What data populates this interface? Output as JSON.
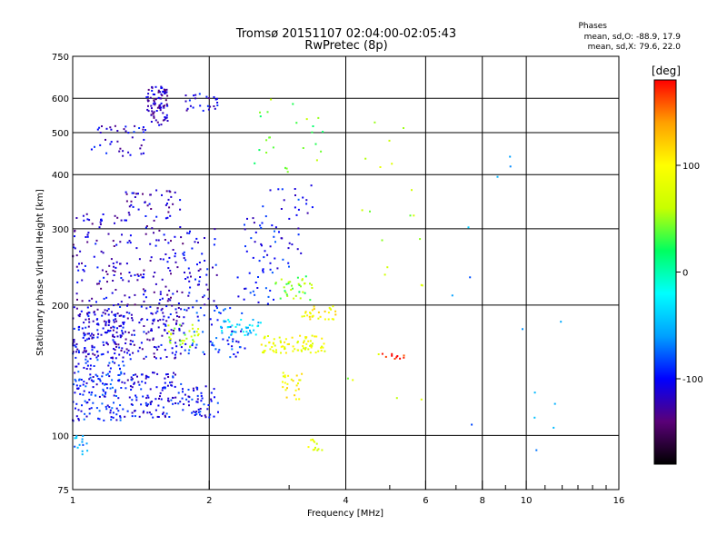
{
  "chart_data": {
    "type": "scatter",
    "title": "Tromsø 20151107 02:04:00-02:05:43",
    "subtitle": "RwPretec (8p)",
    "xlabel": "Frequency [MHz]",
    "ylabel": "Stationary phase Virtual Height [km]",
    "x_scale": "log",
    "y_scale": "log",
    "xlim": [
      1,
      16
    ],
    "ylim": [
      75,
      750
    ],
    "x_ticks": [
      1,
      2,
      4,
      6,
      8,
      10,
      16
    ],
    "y_ticks": [
      75,
      100,
      200,
      300,
      400,
      500,
      600,
      750
    ],
    "phases_panel": {
      "heading": "Phases",
      "line_o": "mean, sd,O: -88.9, 17.9",
      "line_x": "mean, sd,X:  79.6, 22.0"
    },
    "colorbar": {
      "label": "[deg]",
      "ticks": [
        100,
        0,
        -100
      ],
      "range": [
        -180,
        180
      ],
      "colors": [
        "#000000",
        "#5a0078",
        "#0000ff",
        "#00a0ff",
        "#00ffff",
        "#00ff60",
        "#c8ff00",
        "#ffff00",
        "#ffa000",
        "#ff0000"
      ]
    },
    "grid": true,
    "clusters": [
      {
        "f": [
          1.0,
          1.3
        ],
        "h": [
          150,
          200
        ],
        "phase": -110,
        "n": 180
      },
      {
        "f": [
          1.0,
          1.3
        ],
        "h": [
          108,
          150
        ],
        "phase": -95,
        "n": 150
      },
      {
        "f": [
          1.0,
          1.3
        ],
        "h": [
          200,
          330
        ],
        "phase": -115,
        "n": 90
      },
      {
        "f": [
          1.3,
          1.75
        ],
        "h": [
          110,
          140
        ],
        "phase": -105,
        "n": 120
      },
      {
        "f": [
          1.3,
          1.75
        ],
        "h": [
          150,
          200
        ],
        "phase": -112,
        "n": 120
      },
      {
        "f": [
          1.3,
          1.75
        ],
        "h": [
          200,
          370
        ],
        "phase": -118,
        "n": 130
      },
      {
        "f": [
          1.45,
          1.62
        ],
        "h": [
          520,
          640
        ],
        "phase": -120,
        "n": 90
      },
      {
        "f": [
          1.1,
          1.45
        ],
        "h": [
          440,
          520
        ],
        "phase": -110,
        "n": 40
      },
      {
        "f": [
          1.0,
          1.08
        ],
        "h": [
          90,
          100
        ],
        "phase": -60,
        "n": 15
      },
      {
        "f": [
          1.75,
          2.1
        ],
        "h": [
          110,
          130
        ],
        "phase": -100,
        "n": 50
      },
      {
        "f": [
          1.75,
          2.4
        ],
        "h": [
          150,
          200
        ],
        "phase": -90,
        "n": 70
      },
      {
        "f": [
          1.75,
          2.1
        ],
        "h": [
          200,
          300
        ],
        "phase": -110,
        "n": 50
      },
      {
        "f": [
          1.75,
          2.1
        ],
        "h": [
          560,
          620
        ],
        "phase": -110,
        "n": 25
      },
      {
        "f": [
          1.6,
          1.9
        ],
        "h": [
          160,
          180
        ],
        "phase": 60,
        "n": 30
      },
      {
        "f": [
          2.1,
          2.6
        ],
        "h": [
          170,
          185
        ],
        "phase": -40,
        "n": 40
      },
      {
        "f": [
          2.3,
          2.8
        ],
        "h": [
          200,
          320
        ],
        "phase": -100,
        "n": 40
      },
      {
        "f": [
          2.6,
          3.6
        ],
        "h": [
          155,
          170
        ],
        "phase": 90,
        "n": 80
      },
      {
        "f": [
          2.8,
          3.4
        ],
        "h": [
          205,
          235
        ],
        "phase": 45,
        "n": 35
      },
      {
        "f": [
          3.2,
          3.8
        ],
        "h": [
          185,
          200
        ],
        "phase": 100,
        "n": 30
      },
      {
        "f": [
          2.9,
          3.2
        ],
        "h": [
          120,
          140
        ],
        "phase": 100,
        "n": 25
      },
      {
        "f": [
          2.6,
          3.4
        ],
        "h": [
          240,
          380
        ],
        "phase": -100,
        "n": 45
      },
      {
        "f": [
          2.5,
          3.6
        ],
        "h": [
          400,
          600
        ],
        "phase": 40,
        "n": 25
      },
      {
        "f": [
          3.3,
          3.6
        ],
        "h": [
          92,
          98
        ],
        "phase": 80,
        "n": 12
      },
      {
        "f": [
          4.8,
          5.4
        ],
        "h": [
          150,
          155
        ],
        "phase": 170,
        "n": 10
      },
      {
        "f": [
          4.0,
          6.0
        ],
        "h": [
          120,
          620
        ],
        "phase": 60,
        "n": 22
      },
      {
        "f": [
          6.5,
          12.0
        ],
        "h": [
          82,
          500
        ],
        "phase": -60,
        "n": 14
      }
    ]
  }
}
